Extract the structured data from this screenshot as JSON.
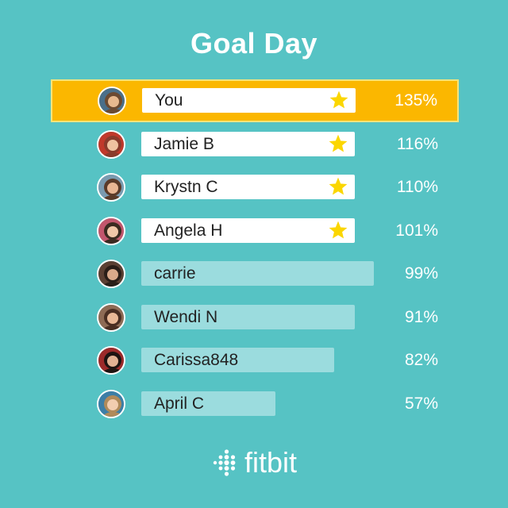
{
  "title": "Goal Day",
  "brand": {
    "name": "fitbit",
    "logo_icon": "fitbit-dots-icon"
  },
  "colors": {
    "background": "#56c3c4",
    "highlight": "#fbb700",
    "bar_done": "#ffffff",
    "bar_partial": "#9bdcde",
    "star": "#fbd600"
  },
  "rows": [
    {
      "name": "You",
      "percent": "135%",
      "progress": 1.35,
      "goal_met": true,
      "is_you": true
    },
    {
      "name": "Jamie B",
      "percent": "116%",
      "progress": 1.16,
      "goal_met": true,
      "is_you": false
    },
    {
      "name": "Krystn C",
      "percent": "110%",
      "progress": 1.1,
      "goal_met": true,
      "is_you": false
    },
    {
      "name": "Angela H",
      "percent": "101%",
      "progress": 1.01,
      "goal_met": true,
      "is_you": false
    },
    {
      "name": "carrie",
      "percent": "99%",
      "progress": 0.99,
      "goal_met": false,
      "is_you": false
    },
    {
      "name": "Wendi N",
      "percent": "91%",
      "progress": 0.91,
      "goal_met": false,
      "is_you": false
    },
    {
      "name": "Carissa848",
      "percent": "82%",
      "progress": 0.82,
      "goal_met": false,
      "is_you": false
    },
    {
      "name": "April C",
      "percent": "57%",
      "progress": 0.57,
      "goal_met": false,
      "is_you": false
    }
  ]
}
